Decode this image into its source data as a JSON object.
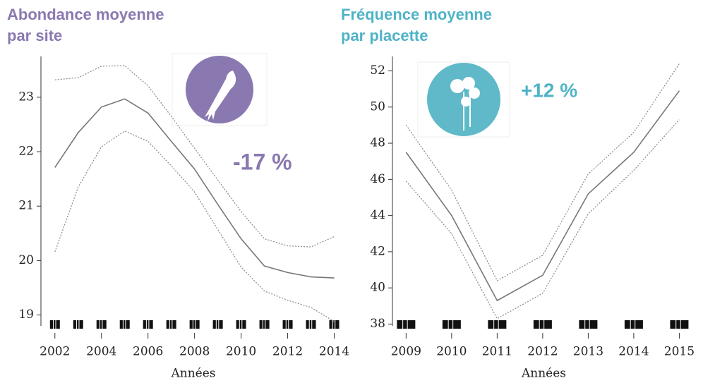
{
  "chart_data": [
    {
      "type": "line",
      "title": "Abondance moyenne par site",
      "title_color": "#8a78b0",
      "annotation": "-17 %",
      "annotation_color": "#8a78b0",
      "xlabel": "Années",
      "x": [
        2002,
        2003,
        2004,
        2005,
        2006,
        2007,
        2008,
        2009,
        2010,
        2011,
        2012,
        2013,
        2014
      ],
      "series": [
        {
          "color": "#777777",
          "dash": "solid",
          "values": [
            21.71,
            22.35,
            22.82,
            22.97,
            22.71,
            22.19,
            21.68,
            21.03,
            20.4,
            19.9,
            19.78,
            19.7,
            19.68
          ]
        },
        {
          "color": "#888888",
          "dash": "dotted",
          "values": [
            23.32,
            23.36,
            23.57,
            23.58,
            23.21,
            22.65,
            22.06,
            21.48,
            20.9,
            20.4,
            20.27,
            20.25,
            20.44
          ]
        },
        {
          "color": "#888888",
          "dash": "dotted",
          "values": [
            20.16,
            21.35,
            22.09,
            22.38,
            22.19,
            21.74,
            21.26,
            20.57,
            19.88,
            19.44,
            19.27,
            19.14,
            18.88
          ]
        }
      ],
      "xlim": [
        2001.4,
        2014.5
      ],
      "xticks": [
        2002,
        2004,
        2006,
        2008,
        2010,
        2012,
        2014
      ],
      "ylim": [
        18.8,
        23.75
      ],
      "yticks": [
        19,
        20,
        21,
        22,
        23
      ]
    },
    {
      "type": "line",
      "title": "Fréquence moyenne par placette",
      "title_color": "#4fb3c6",
      "annotation": "+12 %",
      "annotation_color": "#4fb3c6",
      "xlabel": "Années",
      "x": [
        2009,
        2010,
        2011,
        2012,
        2013,
        2014,
        2015
      ],
      "series": [
        {
          "color": "#777777",
          "dash": "solid",
          "values": [
            47.5,
            44.0,
            39.3,
            40.7,
            45.2,
            47.5,
            50.9
          ]
        },
        {
          "color": "#888888",
          "dash": "dotted",
          "values": [
            49.0,
            45.4,
            40.4,
            41.8,
            46.3,
            48.6,
            52.4
          ]
        },
        {
          "color": "#888888",
          "dash": "dotted",
          "values": [
            45.9,
            43.0,
            38.3,
            39.7,
            44.1,
            46.5,
            49.3
          ]
        }
      ],
      "xlim": [
        2008.7,
        2015.35
      ],
      "xticks": [
        2009,
        2010,
        2011,
        2012,
        2013,
        2014,
        2015
      ],
      "ylim": [
        37.9,
        52.8
      ],
      "yticks": [
        38,
        40,
        42,
        44,
        46,
        48,
        50,
        52
      ]
    }
  ]
}
